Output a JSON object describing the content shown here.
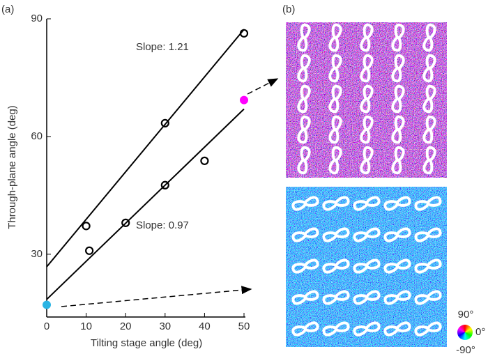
{
  "chart_data": {
    "type": "scatter",
    "panel_labels": [
      "(a)",
      "(b)"
    ],
    "x_label": "Tilting stage angle (deg)",
    "y_label": "Through-plane angle (deg)",
    "xlim": [
      0,
      50
    ],
    "xticks": [
      0,
      10,
      20,
      30,
      40,
      50
    ],
    "ylim": [
      14,
      90
    ],
    "yticks": [
      30,
      60,
      90
    ],
    "series": [
      {
        "color": "#000000",
        "x": [
          10,
          30,
          50
        ],
        "values": [
          37.2,
          63.4,
          86.3
        ]
      },
      {
        "color": "#000000",
        "x": [
          10.8,
          20,
          30,
          40
        ],
        "values": [
          30.9,
          38,
          47.6,
          53.8
        ]
      },
      {
        "color": "#ff00ff",
        "x": [
          50
        ],
        "values": [
          69.3
        ]
      },
      {
        "color": "#2ab4e4",
        "x": [
          0
        ],
        "values": [
          17.1
        ]
      }
    ],
    "lines": [
      {
        "x": [
          0,
          50
        ],
        "values": [
          26.8,
          87.3
        ]
      },
      {
        "x": [
          0,
          50
        ],
        "values": [
          18.5,
          67
        ]
      }
    ],
    "annotations": [
      "Slope: 1.21",
      "Slope: 0.97"
    ],
    "colorwheel_labels": [
      "90°",
      "0°",
      "-90°"
    ]
  }
}
